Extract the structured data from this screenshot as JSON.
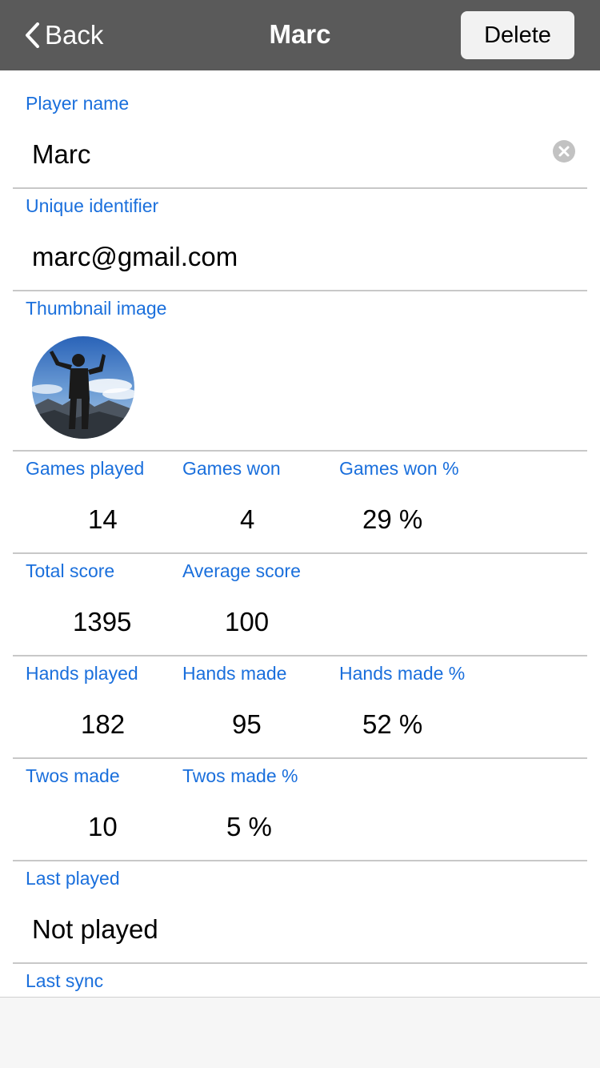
{
  "nav": {
    "back_label": "Back",
    "title": "Marc",
    "delete_label": "Delete"
  },
  "player_name": {
    "label": "Player name",
    "value": "Marc"
  },
  "unique_identifier": {
    "label": "Unique identifier",
    "value": "marc@gmail.com"
  },
  "thumbnail": {
    "label": "Thumbnail image"
  },
  "games": {
    "played_label": "Games played",
    "played": "14",
    "won_label": "Games won",
    "won": "4",
    "won_pct_label": "Games won %",
    "won_pct": "29 %"
  },
  "score": {
    "total_label": "Total score",
    "total": "1395",
    "average_label": "Average score",
    "average": "100"
  },
  "hands": {
    "played_label": "Hands played",
    "played": "182",
    "made_label": "Hands made",
    "made": "95",
    "made_pct_label": "Hands made %",
    "made_pct": "52 %"
  },
  "twos": {
    "made_label": "Twos made",
    "made": "10",
    "made_pct_label": "Twos made %",
    "made_pct": "5 %"
  },
  "last_played": {
    "label": "Last played",
    "value": "Not played"
  },
  "last_sync": {
    "label": "Last sync"
  },
  "colors": {
    "navbar": "#5a5a5a",
    "label": "#1a6fdc",
    "separator": "#c8c8c8"
  }
}
